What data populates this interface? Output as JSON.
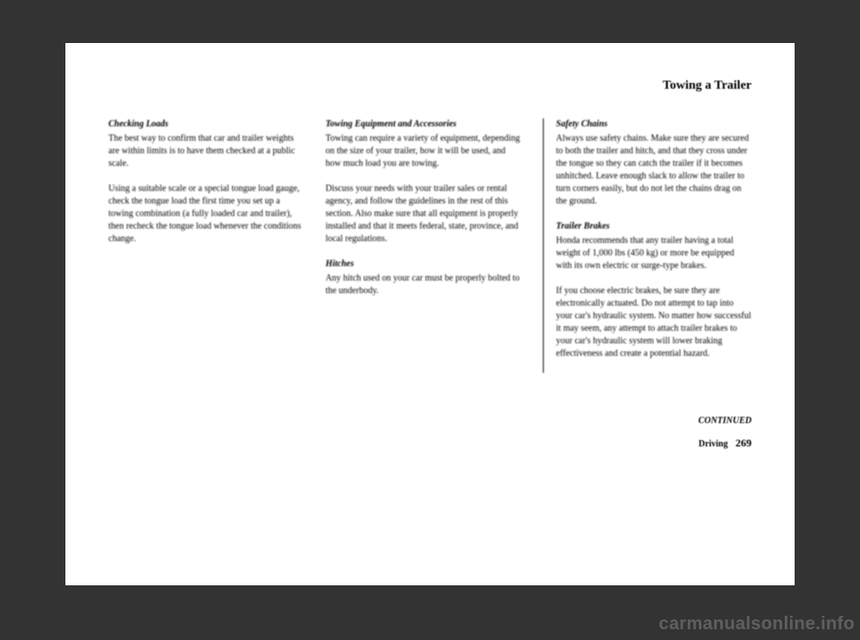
{
  "page": {
    "title": "Towing a Trailer",
    "continued": "CONTINUED",
    "footer_section": "Driving",
    "footer_page": "269"
  },
  "col1": {
    "h1": "Checking Loads",
    "p1": "The best way to confirm that car and trailer weights are within limits is to have them checked at a public scale.",
    "p2": "Using a suitable scale or a special tongue load gauge, check the tongue load the first time you set up a towing combination (a fully loaded car and trailer), then recheck the tongue load whenever the conditions change."
  },
  "col2": {
    "h1": "Towing Equipment and Accessories",
    "p1": "Towing can require a variety of equipment, depending on the size of your trailer, how it will be used, and how much load you are towing.",
    "p2": "Discuss your needs with your trailer sales or rental agency, and follow the guidelines in the rest of this section. Also make sure that all equipment is properly installed and that it meets federal, state, province, and local regulations.",
    "h2": "Hitches",
    "p3": "Any hitch used on your car must be properly bolted to the underbody."
  },
  "col3": {
    "h1": "Safety Chains",
    "p1": "Always use safety chains. Make sure they are secured to both the trailer and hitch, and that they cross under the tongue so they can catch the trailer if it becomes unhitched. Leave enough slack to allow the trailer to turn corners easily, but do not let the chains drag on the ground.",
    "h2": "Trailer Brakes",
    "p2": "Honda recommends that any trailer having a total weight of 1,000 lbs (450 kg) or more be equipped with its own electric or surge-type brakes.",
    "p3": "If you choose electric brakes, be sure they are electronically actuated. Do not attempt to tap into your car's hydraulic system. No matter how successful it may seem, any attempt to attach trailer brakes to your car's hydraulic system will lower braking effectiveness and create a potential hazard."
  },
  "watermark": "carmanualsonline.info"
}
